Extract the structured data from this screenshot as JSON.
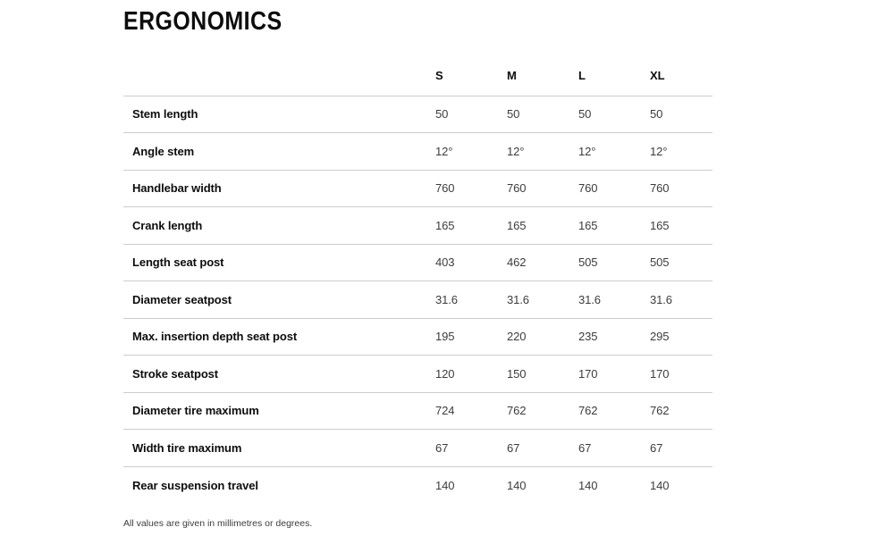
{
  "page": {
    "title": "ERGONOMICS",
    "footnote": "All values are given in millimetres or degrees."
  },
  "table": {
    "columns": [
      "S",
      "M",
      "L",
      "XL"
    ],
    "rows": [
      {
        "label": "Stem length",
        "values": [
          "50",
          "50",
          "50",
          "50"
        ]
      },
      {
        "label": "Angle stem",
        "values": [
          "12°",
          "12°",
          "12°",
          "12°"
        ]
      },
      {
        "label": "Handlebar width",
        "values": [
          "760",
          "760",
          "760",
          "760"
        ]
      },
      {
        "label": "Crank length",
        "values": [
          "165",
          "165",
          "165",
          "165"
        ]
      },
      {
        "label": "Length seat post",
        "values": [
          "403",
          "462",
          "505",
          "505"
        ]
      },
      {
        "label": "Diameter seatpost",
        "values": [
          "31.6",
          "31.6",
          "31.6",
          "31.6"
        ]
      },
      {
        "label": "Max. insertion depth seat post",
        "values": [
          "195",
          "220",
          "235",
          "295"
        ]
      },
      {
        "label": "Stroke seatpost",
        "values": [
          "120",
          "150",
          "170",
          "170"
        ]
      },
      {
        "label": "Diameter tire maximum",
        "values": [
          "724",
          "762",
          "762",
          "762"
        ]
      },
      {
        "label": "Width tire maximum",
        "values": [
          "67",
          "67",
          "67",
          "67"
        ]
      },
      {
        "label": "Rear suspension travel",
        "values": [
          "140",
          "140",
          "140",
          "140"
        ]
      }
    ]
  }
}
